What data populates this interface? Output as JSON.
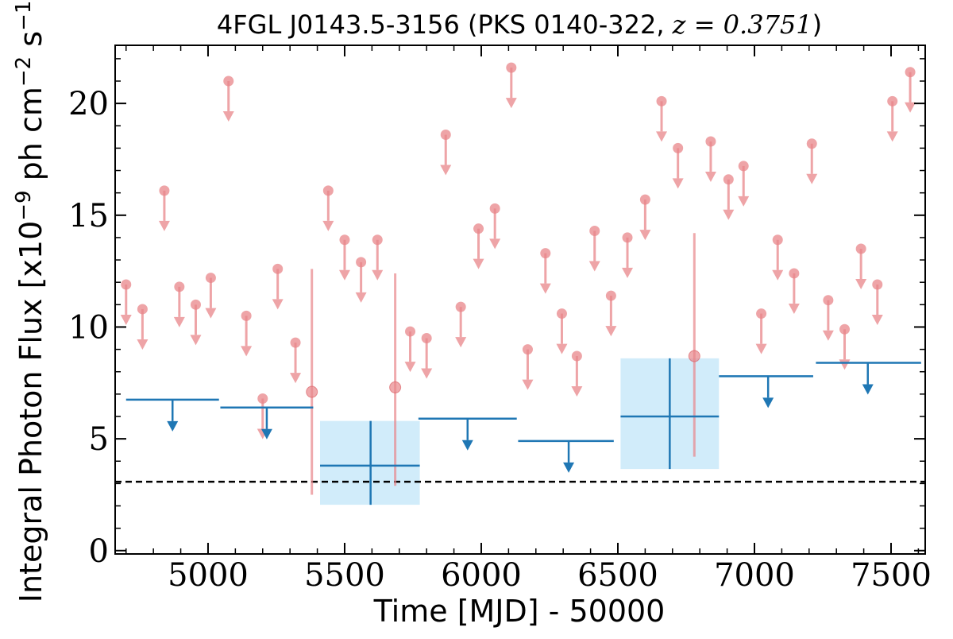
{
  "chart_data": {
    "type": "scatter",
    "title": "4FGL J0143.5-3156 (PKS 0140-322, ",
    "title_math": "z = 0.3751",
    "title_close": ")",
    "xlabel": "Time [MJD] - 50000",
    "ylabel": "Integral Photon Flux [x10^-9 ph cm^-2 s^-1]",
    "ylabel_parts": {
      "a": "Integral Photon Flux [x10",
      "e1": "−9",
      "b": " ph cm",
      "e2": "−2",
      "c": " s",
      "e3": "−1",
      "d": "]"
    },
    "xlim": [
      4660,
      7625
    ],
    "ylim": [
      -0.15,
      22.6
    ],
    "x_ticks": [
      5000,
      5500,
      6000,
      6500,
      7000,
      7500
    ],
    "y_ticks": [
      0,
      5,
      10,
      15,
      20
    ],
    "grid": false,
    "reference_line": {
      "y": 3.08,
      "style": "dashed",
      "color": "#000000"
    },
    "colors": {
      "short_bins": "#e8868a",
      "long_bins": "#1f77b4",
      "error_box": "#d1ecfa"
    },
    "short_bin_upper_limits": [
      {
        "x": 4700,
        "y": 11.9
      },
      {
        "x": 4760,
        "y": 10.8
      },
      {
        "x": 4840,
        "y": 16.1
      },
      {
        "x": 4895,
        "y": 11.8
      },
      {
        "x": 4955,
        "y": 11.0
      },
      {
        "x": 5010,
        "y": 12.2
      },
      {
        "x": 5075,
        "y": 21.0
      },
      {
        "x": 5140,
        "y": 10.5
      },
      {
        "x": 5200,
        "y": 6.8
      },
      {
        "x": 5255,
        "y": 12.6
      },
      {
        "x": 5320,
        "y": 9.3
      },
      {
        "x": 5440,
        "y": 16.1
      },
      {
        "x": 5500,
        "y": 13.9
      },
      {
        "x": 5560,
        "y": 12.9
      },
      {
        "x": 5620,
        "y": 13.9
      },
      {
        "x": 5740,
        "y": 9.8
      },
      {
        "x": 5800,
        "y": 9.5
      },
      {
        "x": 5870,
        "y": 18.6
      },
      {
        "x": 5925,
        "y": 10.9
      },
      {
        "x": 5990,
        "y": 14.4
      },
      {
        "x": 6050,
        "y": 15.3
      },
      {
        "x": 6110,
        "y": 21.6
      },
      {
        "x": 6170,
        "y": 9.0
      },
      {
        "x": 6235,
        "y": 13.3
      },
      {
        "x": 6295,
        "y": 10.6
      },
      {
        "x": 6350,
        "y": 8.7
      },
      {
        "x": 6415,
        "y": 14.3
      },
      {
        "x": 6475,
        "y": 11.4
      },
      {
        "x": 6535,
        "y": 14.0
      },
      {
        "x": 6600,
        "y": 15.7
      },
      {
        "x": 6660,
        "y": 20.1
      },
      {
        "x": 6720,
        "y": 18.0
      },
      {
        "x": 6840,
        "y": 18.3
      },
      {
        "x": 6905,
        "y": 16.6
      },
      {
        "x": 6960,
        "y": 17.2
      },
      {
        "x": 7025,
        "y": 10.6
      },
      {
        "x": 7085,
        "y": 13.9
      },
      {
        "x": 7145,
        "y": 12.4
      },
      {
        "x": 7210,
        "y": 18.2
      },
      {
        "x": 7270,
        "y": 11.2
      },
      {
        "x": 7330,
        "y": 9.9
      },
      {
        "x": 7390,
        "y": 13.5
      },
      {
        "x": 7450,
        "y": 11.9
      },
      {
        "x": 7505,
        "y": 20.1
      },
      {
        "x": 7570,
        "y": 21.4
      }
    ],
    "short_bin_detections": [
      {
        "x": 5380,
        "y": 7.1,
        "ylow": 2.5,
        "yhigh": 12.6
      },
      {
        "x": 5685,
        "y": 7.3,
        "ylow": 2.9,
        "yhigh": 12.4
      },
      {
        "x": 6780,
        "y": 8.7,
        "ylow": 4.2,
        "yhigh": 14.2
      }
    ],
    "long_bin_upper_limits": [
      {
        "x0": 4700,
        "x1": 5040,
        "y": 6.75,
        "x_arrow": 4870
      },
      {
        "x0": 5045,
        "x1": 5385,
        "y": 6.4,
        "x_arrow": 5215
      },
      {
        "x0": 5770,
        "x1": 6130,
        "y": 5.9,
        "x_arrow": 5950
      },
      {
        "x0": 6135,
        "x1": 6485,
        "y": 4.9,
        "x_arrow": 6320
      },
      {
        "x0": 6870,
        "x1": 7215,
        "y": 7.8,
        "x_arrow": 7050
      },
      {
        "x0": 7225,
        "x1": 7610,
        "y": 8.4,
        "x_arrow": 7415
      }
    ],
    "long_bin_detections": [
      {
        "x0": 5410,
        "x1": 5775,
        "x": 5595,
        "y": 3.8,
        "ylow": 2.05,
        "yhigh": 5.8
      },
      {
        "x0": 6510,
        "x1": 6870,
        "x": 6690,
        "y": 6.0,
        "ylow": 3.65,
        "yhigh": 8.6
      }
    ]
  }
}
